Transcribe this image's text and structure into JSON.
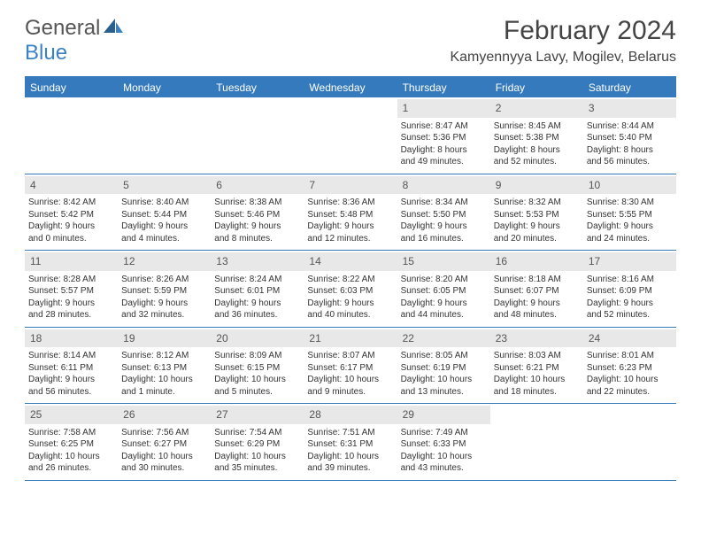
{
  "brand": {
    "part1": "General",
    "part2": "Blue"
  },
  "title": "February 2024",
  "location": "Kamyennyya Lavy, Mogilev, Belarus",
  "colors": {
    "header_blue": "#357abd",
    "day_bg": "#e8e8e8",
    "text": "#333333",
    "title_text": "#444444"
  },
  "dow": [
    "Sunday",
    "Monday",
    "Tuesday",
    "Wednesday",
    "Thursday",
    "Friday",
    "Saturday"
  ],
  "weeks": [
    [
      null,
      null,
      null,
      null,
      {
        "n": "1",
        "sr": "Sunrise: 8:47 AM",
        "ss": "Sunset: 5:36 PM",
        "d1": "Daylight: 8 hours",
        "d2": "and 49 minutes."
      },
      {
        "n": "2",
        "sr": "Sunrise: 8:45 AM",
        "ss": "Sunset: 5:38 PM",
        "d1": "Daylight: 8 hours",
        "d2": "and 52 minutes."
      },
      {
        "n": "3",
        "sr": "Sunrise: 8:44 AM",
        "ss": "Sunset: 5:40 PM",
        "d1": "Daylight: 8 hours",
        "d2": "and 56 minutes."
      }
    ],
    [
      {
        "n": "4",
        "sr": "Sunrise: 8:42 AM",
        "ss": "Sunset: 5:42 PM",
        "d1": "Daylight: 9 hours",
        "d2": "and 0 minutes."
      },
      {
        "n": "5",
        "sr": "Sunrise: 8:40 AM",
        "ss": "Sunset: 5:44 PM",
        "d1": "Daylight: 9 hours",
        "d2": "and 4 minutes."
      },
      {
        "n": "6",
        "sr": "Sunrise: 8:38 AM",
        "ss": "Sunset: 5:46 PM",
        "d1": "Daylight: 9 hours",
        "d2": "and 8 minutes."
      },
      {
        "n": "7",
        "sr": "Sunrise: 8:36 AM",
        "ss": "Sunset: 5:48 PM",
        "d1": "Daylight: 9 hours",
        "d2": "and 12 minutes."
      },
      {
        "n": "8",
        "sr": "Sunrise: 8:34 AM",
        "ss": "Sunset: 5:50 PM",
        "d1": "Daylight: 9 hours",
        "d2": "and 16 minutes."
      },
      {
        "n": "9",
        "sr": "Sunrise: 8:32 AM",
        "ss": "Sunset: 5:53 PM",
        "d1": "Daylight: 9 hours",
        "d2": "and 20 minutes."
      },
      {
        "n": "10",
        "sr": "Sunrise: 8:30 AM",
        "ss": "Sunset: 5:55 PM",
        "d1": "Daylight: 9 hours",
        "d2": "and 24 minutes."
      }
    ],
    [
      {
        "n": "11",
        "sr": "Sunrise: 8:28 AM",
        "ss": "Sunset: 5:57 PM",
        "d1": "Daylight: 9 hours",
        "d2": "and 28 minutes."
      },
      {
        "n": "12",
        "sr": "Sunrise: 8:26 AM",
        "ss": "Sunset: 5:59 PM",
        "d1": "Daylight: 9 hours",
        "d2": "and 32 minutes."
      },
      {
        "n": "13",
        "sr": "Sunrise: 8:24 AM",
        "ss": "Sunset: 6:01 PM",
        "d1": "Daylight: 9 hours",
        "d2": "and 36 minutes."
      },
      {
        "n": "14",
        "sr": "Sunrise: 8:22 AM",
        "ss": "Sunset: 6:03 PM",
        "d1": "Daylight: 9 hours",
        "d2": "and 40 minutes."
      },
      {
        "n": "15",
        "sr": "Sunrise: 8:20 AM",
        "ss": "Sunset: 6:05 PM",
        "d1": "Daylight: 9 hours",
        "d2": "and 44 minutes."
      },
      {
        "n": "16",
        "sr": "Sunrise: 8:18 AM",
        "ss": "Sunset: 6:07 PM",
        "d1": "Daylight: 9 hours",
        "d2": "and 48 minutes."
      },
      {
        "n": "17",
        "sr": "Sunrise: 8:16 AM",
        "ss": "Sunset: 6:09 PM",
        "d1": "Daylight: 9 hours",
        "d2": "and 52 minutes."
      }
    ],
    [
      {
        "n": "18",
        "sr": "Sunrise: 8:14 AM",
        "ss": "Sunset: 6:11 PM",
        "d1": "Daylight: 9 hours",
        "d2": "and 56 minutes."
      },
      {
        "n": "19",
        "sr": "Sunrise: 8:12 AM",
        "ss": "Sunset: 6:13 PM",
        "d1": "Daylight: 10 hours",
        "d2": "and 1 minute."
      },
      {
        "n": "20",
        "sr": "Sunrise: 8:09 AM",
        "ss": "Sunset: 6:15 PM",
        "d1": "Daylight: 10 hours",
        "d2": "and 5 minutes."
      },
      {
        "n": "21",
        "sr": "Sunrise: 8:07 AM",
        "ss": "Sunset: 6:17 PM",
        "d1": "Daylight: 10 hours",
        "d2": "and 9 minutes."
      },
      {
        "n": "22",
        "sr": "Sunrise: 8:05 AM",
        "ss": "Sunset: 6:19 PM",
        "d1": "Daylight: 10 hours",
        "d2": "and 13 minutes."
      },
      {
        "n": "23",
        "sr": "Sunrise: 8:03 AM",
        "ss": "Sunset: 6:21 PM",
        "d1": "Daylight: 10 hours",
        "d2": "and 18 minutes."
      },
      {
        "n": "24",
        "sr": "Sunrise: 8:01 AM",
        "ss": "Sunset: 6:23 PM",
        "d1": "Daylight: 10 hours",
        "d2": "and 22 minutes."
      }
    ],
    [
      {
        "n": "25",
        "sr": "Sunrise: 7:58 AM",
        "ss": "Sunset: 6:25 PM",
        "d1": "Daylight: 10 hours",
        "d2": "and 26 minutes."
      },
      {
        "n": "26",
        "sr": "Sunrise: 7:56 AM",
        "ss": "Sunset: 6:27 PM",
        "d1": "Daylight: 10 hours",
        "d2": "and 30 minutes."
      },
      {
        "n": "27",
        "sr": "Sunrise: 7:54 AM",
        "ss": "Sunset: 6:29 PM",
        "d1": "Daylight: 10 hours",
        "d2": "and 35 minutes."
      },
      {
        "n": "28",
        "sr": "Sunrise: 7:51 AM",
        "ss": "Sunset: 6:31 PM",
        "d1": "Daylight: 10 hours",
        "d2": "and 39 minutes."
      },
      {
        "n": "29",
        "sr": "Sunrise: 7:49 AM",
        "ss": "Sunset: 6:33 PM",
        "d1": "Daylight: 10 hours",
        "d2": "and 43 minutes."
      },
      null,
      null
    ]
  ]
}
